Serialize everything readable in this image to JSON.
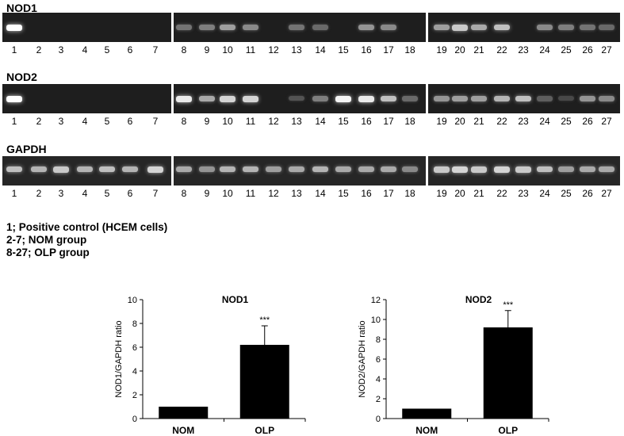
{
  "blots": [
    {
      "label": "NOD1",
      "lane_labels": [
        "1",
        "2",
        "3",
        "4",
        "5",
        "6",
        "7",
        "8",
        "9",
        "10",
        "11",
        "12",
        "13",
        "14",
        "15",
        "16",
        "17",
        "18",
        "19",
        "20",
        "21",
        "22",
        "23",
        "24",
        "25",
        "26",
        "27"
      ],
      "band_intensity": [
        1.0,
        0,
        0,
        0,
        0,
        0,
        0,
        0.35,
        0.4,
        0.55,
        0.45,
        0,
        0.35,
        0.3,
        0,
        0.5,
        0.45,
        0,
        0.55,
        0.75,
        0.6,
        0.7,
        0,
        0.45,
        0.4,
        0.35,
        0.3
      ]
    },
    {
      "label": "NOD2",
      "lane_labels": [
        "1",
        "2",
        "3",
        "4",
        "5",
        "6",
        "7",
        "8",
        "9",
        "10",
        "11",
        "12",
        "13",
        "14",
        "15",
        "16",
        "17",
        "18",
        "19",
        "20",
        "21",
        "22",
        "23",
        "24",
        "25",
        "26",
        "27"
      ],
      "band_intensity": [
        1.0,
        0,
        0,
        0,
        0,
        0,
        0,
        0.9,
        0.6,
        0.8,
        0.8,
        0,
        0.2,
        0.4,
        0.95,
        0.9,
        0.7,
        0.3,
        0.5,
        0.55,
        0.55,
        0.65,
        0.7,
        0.25,
        0.15,
        0.5,
        0.45
      ]
    },
    {
      "label": "GAPDH",
      "lane_labels": [
        "1",
        "2",
        "3",
        "4",
        "5",
        "6",
        "7",
        "8",
        "9",
        "10",
        "11",
        "12",
        "13",
        "14",
        "15",
        "16",
        "17",
        "18",
        "19",
        "20",
        "21",
        "22",
        "23",
        "24",
        "25",
        "26",
        "27"
      ],
      "band_intensity": [
        0.7,
        0.65,
        0.75,
        0.65,
        0.7,
        0.65,
        0.8,
        0.6,
        0.5,
        0.65,
        0.65,
        0.55,
        0.6,
        0.65,
        0.6,
        0.6,
        0.6,
        0.45,
        0.75,
        0.8,
        0.75,
        0.8,
        0.75,
        0.7,
        0.55,
        0.6,
        0.6
      ]
    }
  ],
  "legend": [
    "1; Positive control (HCEM cells)",
    "2-7; NOM group",
    "8-27; OLP group"
  ],
  "chart_data": [
    {
      "type": "bar",
      "title": "NOD1",
      "ylabel": "NOD1/GAPDH ratio",
      "categories": [
        "NOM",
        "OLP"
      ],
      "values": [
        1.0,
        6.2
      ],
      "error": [
        0,
        1.6
      ],
      "annotations": [
        "",
        "***"
      ],
      "ylim": [
        0,
        10
      ],
      "yticks": [
        0,
        2,
        4,
        6,
        8,
        10
      ],
      "bar_color": "#000000",
      "grid": false
    },
    {
      "type": "bar",
      "title": "NOD2",
      "ylabel": "NOD2/GAPDH ratio",
      "categories": [
        "NOM",
        "OLP"
      ],
      "values": [
        1.0,
        9.2
      ],
      "error": [
        0,
        1.7
      ],
      "annotations": [
        "",
        "***"
      ],
      "ylim": [
        0,
        12
      ],
      "yticks": [
        0,
        2,
        4,
        6,
        8,
        10,
        12
      ],
      "bar_color": "#000000",
      "grid": false
    }
  ]
}
